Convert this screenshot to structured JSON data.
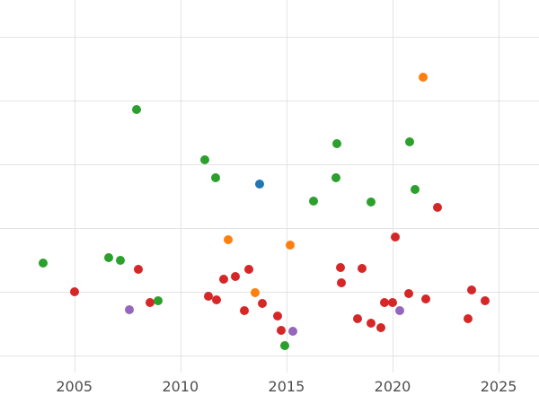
{
  "style": {
    "background": "#ffffff",
    "gridline_color": "#e4e4e4",
    "tick_label_color": "#4d4d4d"
  },
  "chart_data": {
    "type": "scatter",
    "title": "",
    "subtitle": "",
    "xlabel": "",
    "ylabel": "",
    "legend": "none",
    "grid": true,
    "x_ticks": [
      2005,
      2010,
      2015,
      2020,
      2025
    ],
    "x_tick_labels": [
      "2005",
      "2010",
      "2015",
      "2020",
      "2025"
    ],
    "x_range": [
      2001.5,
      2026.9
    ],
    "y_range": [
      -0.27,
      5.58
    ],
    "y_gridlines": [
      0,
      1,
      2,
      3,
      4,
      5
    ],
    "y_axis_note": "no y-axis tick labels visible in image; y values in gridline units",
    "palette": {
      "green": "#2ca02c",
      "red": "#d62728",
      "orange": "#ff7f0e",
      "blue": "#1f77b4",
      "purple": "#9467bd"
    },
    "points": [
      {
        "x": 2003.52,
        "y": 1.45,
        "c": "green"
      },
      {
        "x": 2005.0,
        "y": 1.0,
        "c": "red"
      },
      {
        "x": 2006.61,
        "y": 1.54,
        "c": "green"
      },
      {
        "x": 2007.16,
        "y": 1.49,
        "c": "green"
      },
      {
        "x": 2007.58,
        "y": 0.72,
        "c": "purple"
      },
      {
        "x": 2007.92,
        "y": 3.86,
        "c": "green"
      },
      {
        "x": 2008.0,
        "y": 1.35,
        "c": "red"
      },
      {
        "x": 2008.55,
        "y": 0.83,
        "c": "red"
      },
      {
        "x": 2008.93,
        "y": 0.86,
        "c": "green"
      },
      {
        "x": 2011.13,
        "y": 3.07,
        "c": "green"
      },
      {
        "x": 2011.3,
        "y": 0.93,
        "c": "red"
      },
      {
        "x": 2011.64,
        "y": 2.79,
        "c": "green"
      },
      {
        "x": 2011.68,
        "y": 0.87,
        "c": "red"
      },
      {
        "x": 2012.06,
        "y": 1.2,
        "c": "red"
      },
      {
        "x": 2012.23,
        "y": 1.82,
        "c": "orange"
      },
      {
        "x": 2012.61,
        "y": 1.24,
        "c": "red"
      },
      {
        "x": 2013.03,
        "y": 0.7,
        "c": "red"
      },
      {
        "x": 2013.24,
        "y": 1.35,
        "c": "red"
      },
      {
        "x": 2013.5,
        "y": 0.99,
        "c": "orange"
      },
      {
        "x": 2013.75,
        "y": 2.69,
        "c": "blue"
      },
      {
        "x": 2013.88,
        "y": 0.82,
        "c": "red"
      },
      {
        "x": 2014.6,
        "y": 0.62,
        "c": "red"
      },
      {
        "x": 2014.76,
        "y": 0.39,
        "c": "red"
      },
      {
        "x": 2014.93,
        "y": 0.15,
        "c": "green"
      },
      {
        "x": 2015.19,
        "y": 1.73,
        "c": "orange"
      },
      {
        "x": 2015.31,
        "y": 0.38,
        "c": "purple"
      },
      {
        "x": 2016.29,
        "y": 2.42,
        "c": "green"
      },
      {
        "x": 2017.34,
        "y": 2.79,
        "c": "green"
      },
      {
        "x": 2017.38,
        "y": 3.32,
        "c": "green"
      },
      {
        "x": 2017.55,
        "y": 1.38,
        "c": "red"
      },
      {
        "x": 2017.6,
        "y": 1.14,
        "c": "red"
      },
      {
        "x": 2018.36,
        "y": 0.58,
        "c": "red"
      },
      {
        "x": 2018.57,
        "y": 1.37,
        "c": "red"
      },
      {
        "x": 2018.99,
        "y": 2.41,
        "c": "green"
      },
      {
        "x": 2018.99,
        "y": 0.51,
        "c": "red"
      },
      {
        "x": 2019.46,
        "y": 0.44,
        "c": "red"
      },
      {
        "x": 2019.63,
        "y": 0.83,
        "c": "red"
      },
      {
        "x": 2020.01,
        "y": 0.83,
        "c": "red"
      },
      {
        "x": 2020.13,
        "y": 1.86,
        "c": "red"
      },
      {
        "x": 2020.34,
        "y": 0.7,
        "c": "purple"
      },
      {
        "x": 2020.77,
        "y": 0.97,
        "c": "red"
      },
      {
        "x": 2020.81,
        "y": 3.35,
        "c": "green"
      },
      {
        "x": 2021.06,
        "y": 2.61,
        "c": "green"
      },
      {
        "x": 2021.44,
        "y": 4.37,
        "c": "orange"
      },
      {
        "x": 2021.57,
        "y": 0.89,
        "c": "red"
      },
      {
        "x": 2022.12,
        "y": 2.32,
        "c": "red"
      },
      {
        "x": 2023.56,
        "y": 0.58,
        "c": "red"
      },
      {
        "x": 2023.73,
        "y": 1.03,
        "c": "red"
      },
      {
        "x": 2024.36,
        "y": 0.86,
        "c": "red"
      }
    ]
  }
}
